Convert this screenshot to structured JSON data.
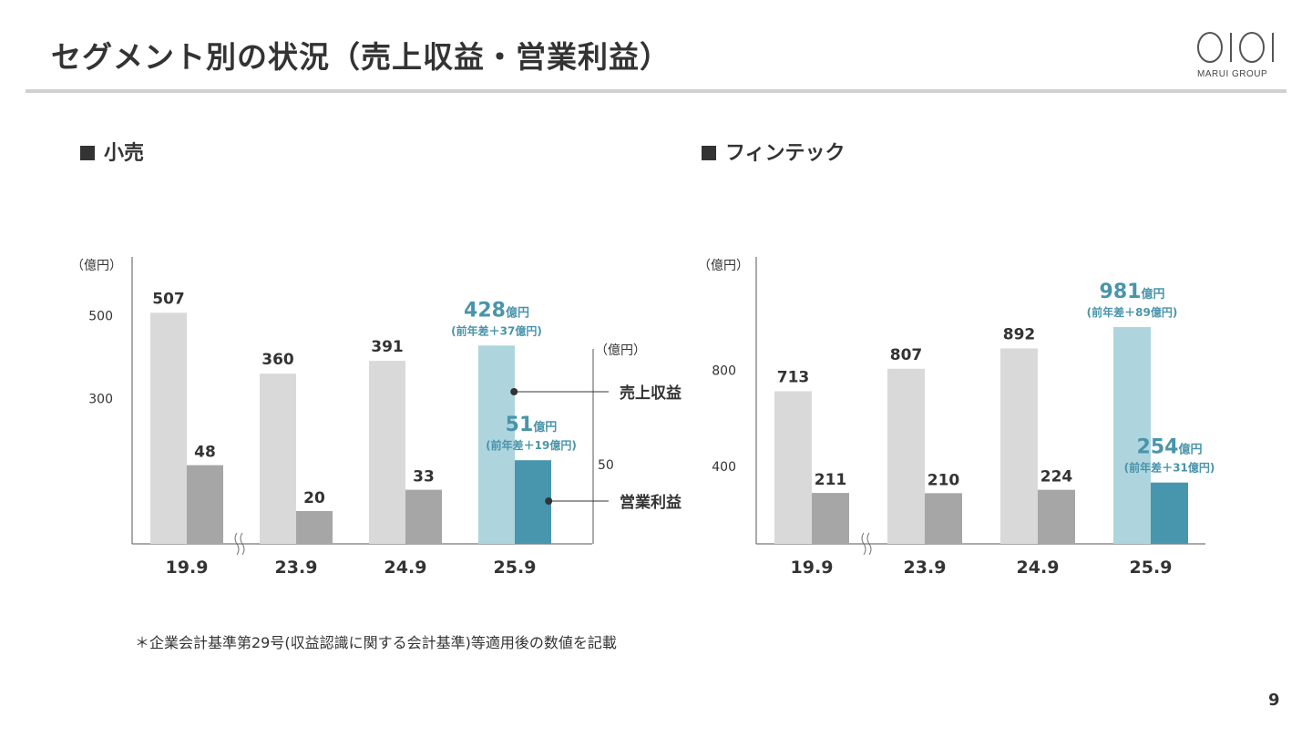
{
  "page": {
    "title": "セグメント別の状況（売上収益・営業利益）",
    "logo_text": "MARUI GROUP",
    "footnote": "＊企業会計基準第29号(収益認識に関する会計基準)等適用後の数値を記載",
    "page_number": "9"
  },
  "colors": {
    "revenue_prior": "#d9d9d9",
    "profit_prior": "#a6a6a6",
    "revenue_current": "#aed5dd",
    "profit_current": "#4796ae",
    "highlight_text": "#4a94ab",
    "text": "#333333"
  },
  "chart_data": [
    {
      "type": "bar",
      "section_title": "小売",
      "categories": [
        "19.9",
        "23.9",
        "24.9",
        "25.9"
      ],
      "series": [
        {
          "name": "売上収益",
          "values": [
            507,
            360,
            391,
            428
          ]
        },
        {
          "name": "営業利益",
          "values": [
            48,
            20,
            33,
            51
          ]
        }
      ],
      "left_axis": {
        "unit": "（億円）",
        "ticks": [
          300,
          500
        ],
        "scale": "truncated"
      },
      "right_axis": {
        "unit": "（億円）",
        "ticks": [
          50
        ]
      },
      "legend": {
        "revenue": "売上収益",
        "profit": "営業利益"
      },
      "axis_break_after": "19.9",
      "highlight": {
        "revenue": {
          "value": "428",
          "unit": "億円",
          "diff": "(前年差＋37億円)"
        },
        "profit": {
          "value": "51",
          "unit": "億円",
          "diff": "(前年差＋19億円)"
        }
      }
    },
    {
      "type": "bar",
      "section_title": "フィンテック",
      "categories": [
        "19.9",
        "23.9",
        "24.9",
        "25.9"
      ],
      "series": [
        {
          "name": "売上収益",
          "values": [
            713,
            807,
            892,
            981
          ]
        },
        {
          "name": "営業利益",
          "values": [
            211,
            210,
            224,
            254
          ]
        }
      ],
      "left_axis": {
        "unit": "（億円）",
        "ticks": [
          400,
          800
        ],
        "scale": "truncated"
      },
      "axis_break_after": "19.9",
      "highlight": {
        "revenue": {
          "value": "981",
          "unit": "億円",
          "diff": "(前年差＋89億円)"
        },
        "profit": {
          "value": "254",
          "unit": "億円",
          "diff": "(前年差＋31億円)"
        }
      }
    }
  ]
}
